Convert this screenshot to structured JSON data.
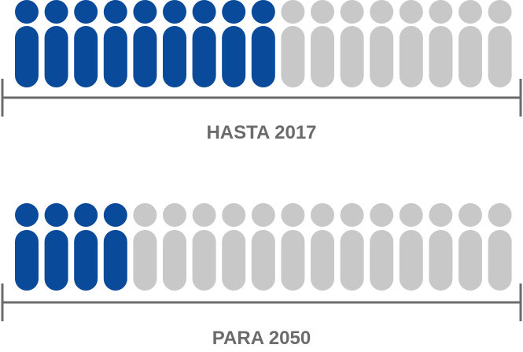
{
  "colors": {
    "filled": "#0a4a9a",
    "empty": "#c8c8c8",
    "bracket": "#6b6b6b",
    "label": "#6b6b6b"
  },
  "icon": "person-icon",
  "groups": [
    {
      "label": "HASTA 2017",
      "total": 17,
      "filled": 9
    },
    {
      "label": "PARA 2050",
      "total": 17,
      "filled": 4
    }
  ]
}
